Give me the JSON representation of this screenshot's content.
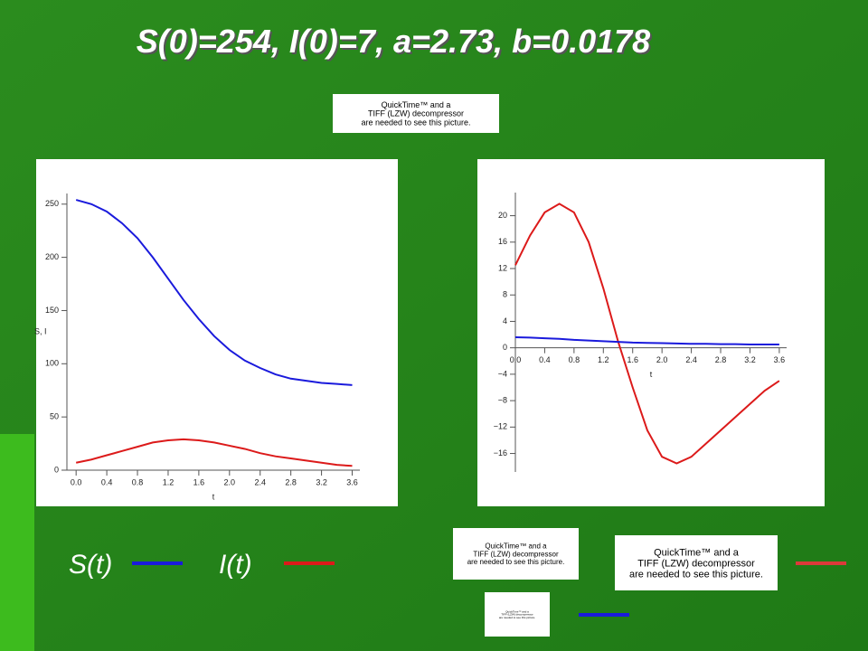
{
  "title": "S(0)=254, I(0)=7, a=2.73, b=0.0178",
  "placeholders": [
    {
      "lines": [
        "QuickTime™ and a",
        "TIFF (LZW) decompressor",
        "are needed to see this picture."
      ]
    },
    {
      "lines": [
        "QuickTime™ and a",
        "TIFF (LZW) decompressor",
        "are needed to see this picture."
      ]
    },
    {
      "lines": [
        "QuickTime™ and a",
        "TIFF (LZW) decompressor",
        "are needed to see this picture."
      ]
    },
    {
      "lines": [
        "QuickTime™ and a",
        "TIFF (LZW) decompressor",
        "are needed to see this picture."
      ]
    }
  ],
  "chart_data": [
    {
      "type": "line",
      "xlabel": "t",
      "ylabel": "S, I",
      "x": [
        0,
        0.2,
        0.4,
        0.6,
        0.8,
        1.0,
        1.2,
        1.4,
        1.6,
        1.8,
        2.0,
        2.2,
        2.4,
        2.6,
        2.8,
        3.0,
        3.2,
        3.4,
        3.6
      ],
      "series": [
        {
          "name": "S(t)",
          "color": "#1a1adc",
          "values": [
            254,
            250,
            243,
            232,
            218,
            200,
            180,
            160,
            142,
            126,
            113,
            103,
            96,
            90,
            86,
            84,
            82,
            81,
            80
          ]
        },
        {
          "name": "I(t)",
          "color": "#dc1a1a",
          "values": [
            7,
            10,
            14,
            18,
            22,
            26,
            28,
            29,
            28,
            26,
            23,
            20,
            16,
            13,
            11,
            9,
            7,
            5,
            4
          ]
        }
      ],
      "xlim": [
        -0.12,
        3.7
      ],
      "xticks": [
        {
          "value": 0,
          "label": "0.0"
        },
        {
          "value": 0.4,
          "label": "0.4"
        },
        {
          "value": 0.8,
          "label": "0.8"
        },
        {
          "value": 1.2,
          "label": "1.2"
        },
        {
          "value": 1.6,
          "label": "1.6"
        },
        {
          "value": 2.0,
          "label": "2.0"
        },
        {
          "value": 2.4,
          "label": "2.4"
        },
        {
          "value": 2.8,
          "label": "2.8"
        },
        {
          "value": 3.2,
          "label": "3.2"
        },
        {
          "value": 3.6,
          "label": "3.6"
        }
      ],
      "ylim": [
        0,
        260
      ],
      "yticks": [
        0,
        50,
        100,
        150,
        200,
        250
      ]
    },
    {
      "type": "line",
      "xlabel": "t",
      "x": [
        0,
        0.2,
        0.4,
        0.6,
        0.8,
        1.0,
        1.2,
        1.4,
        1.6,
        1.8,
        2.0,
        2.2,
        2.4,
        2.6,
        2.8,
        3.0,
        3.2,
        3.4,
        3.6
      ],
      "series": [
        {
          "color": "#dc1a1a",
          "values": [
            12.5,
            17,
            20.5,
            21.8,
            20.5,
            16,
            9,
            1,
            -6,
            -12.5,
            -16.5,
            -17.5,
            -16.5,
            -14.5,
            -12.5,
            -10.5,
            -8.5,
            -6.5,
            -5
          ]
        },
        {
          "color": "#1a1adc",
          "values": [
            1.6,
            1.55,
            1.45,
            1.35,
            1.2,
            1.1,
            1.0,
            0.9,
            0.8,
            0.75,
            0.7,
            0.65,
            0.6,
            0.6,
            0.55,
            0.55,
            0.5,
            0.5,
            0.5
          ]
        }
      ],
      "xlim": [
        0,
        3.7
      ],
      "xticks": [
        {
          "value": 0,
          "label": "0.0"
        },
        {
          "value": 0.4,
          "label": "0.4"
        },
        {
          "value": 0.8,
          "label": "0.8"
        },
        {
          "value": 1.2,
          "label": "1.2"
        },
        {
          "value": 1.6,
          "label": "1.6"
        },
        {
          "value": 2.0,
          "label": "2.0"
        },
        {
          "value": 2.4,
          "label": "2.4"
        },
        {
          "value": 2.8,
          "label": "2.8"
        },
        {
          "value": 3.2,
          "label": "3.2"
        },
        {
          "value": 3.6,
          "label": "3.6"
        }
      ],
      "ylim": [
        -18.8,
        23.5
      ],
      "yticks": [
        {
          "value": -16,
          "label": "−16"
        },
        {
          "value": -12,
          "label": "−12"
        },
        {
          "value": -8,
          "label": "−8"
        },
        {
          "value": -4,
          "label": "−4"
        },
        0,
        4,
        8,
        12,
        16,
        20
      ]
    }
  ]
}
